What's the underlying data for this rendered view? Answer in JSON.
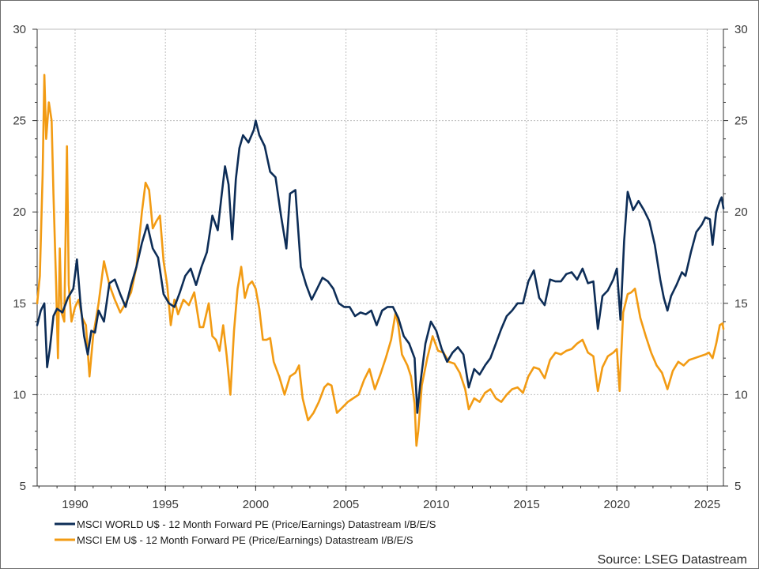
{
  "colors": {
    "world": "#0d2d57",
    "em": "#f29b13",
    "grid": "#bdbdbd",
    "axis": "#333333"
  },
  "source": "Source: LSEG Datastream",
  "chart_data": {
    "type": "line",
    "title": "",
    "xlabel": "",
    "ylabel": "",
    "x_range": [
      1987.9,
      2025.9
    ],
    "ylim": [
      5,
      30
    ],
    "yticks": [
      "5",
      "10",
      "15",
      "20",
      "25",
      "30"
    ],
    "xticks": [
      "1990",
      "1995",
      "2000",
      "2005",
      "2010",
      "2015",
      "2020",
      "2025"
    ],
    "dual_y_axis": true,
    "grid": true,
    "legend_position": "bottom-left",
    "series": [
      {
        "name": "MSCI WORLD U$ - 12 Month Forward PE (Price/Earnings) Datastream I/B/E/S",
        "color": "#0d2d57",
        "points": [
          [
            1987.9,
            13.8
          ],
          [
            1988.1,
            14.6
          ],
          [
            1988.3,
            15.0
          ],
          [
            1988.45,
            11.5
          ],
          [
            1988.6,
            12.5
          ],
          [
            1988.8,
            14.3
          ],
          [
            1989.0,
            14.7
          ],
          [
            1989.3,
            14.5
          ],
          [
            1989.6,
            15.3
          ],
          [
            1989.9,
            15.8
          ],
          [
            1990.1,
            17.4
          ],
          [
            1990.3,
            15.0
          ],
          [
            1990.5,
            13.2
          ],
          [
            1990.7,
            12.2
          ],
          [
            1990.9,
            13.5
          ],
          [
            1991.1,
            13.4
          ],
          [
            1991.3,
            14.6
          ],
          [
            1991.6,
            14.0
          ],
          [
            1991.9,
            16.1
          ],
          [
            1992.2,
            16.3
          ],
          [
            1992.5,
            15.5
          ],
          [
            1992.8,
            14.8
          ],
          [
            1993.1,
            16.0
          ],
          [
            1993.4,
            17.0
          ],
          [
            1993.7,
            18.3
          ],
          [
            1994.0,
            19.3
          ],
          [
            1994.3,
            18.0
          ],
          [
            1994.6,
            17.5
          ],
          [
            1994.9,
            15.5
          ],
          [
            1995.2,
            15.0
          ],
          [
            1995.5,
            14.8
          ],
          [
            1995.8,
            15.6
          ],
          [
            1996.1,
            16.5
          ],
          [
            1996.4,
            16.9
          ],
          [
            1996.7,
            16.0
          ],
          [
            1997.0,
            17.0
          ],
          [
            1997.3,
            17.8
          ],
          [
            1997.6,
            19.8
          ],
          [
            1997.9,
            19.0
          ],
          [
            1998.1,
            20.8
          ],
          [
            1998.3,
            22.5
          ],
          [
            1998.5,
            21.5
          ],
          [
            1998.7,
            18.5
          ],
          [
            1998.9,
            21.8
          ],
          [
            1999.1,
            23.5
          ],
          [
            1999.3,
            24.2
          ],
          [
            1999.6,
            23.8
          ],
          [
            1999.9,
            24.5
          ],
          [
            2000.0,
            25.0
          ],
          [
            2000.2,
            24.2
          ],
          [
            2000.5,
            23.6
          ],
          [
            2000.8,
            22.2
          ],
          [
            2001.1,
            21.9
          ],
          [
            2001.4,
            19.8
          ],
          [
            2001.7,
            18.0
          ],
          [
            2001.9,
            21.0
          ],
          [
            2002.2,
            21.2
          ],
          [
            2002.5,
            17.0
          ],
          [
            2002.8,
            16.0
          ],
          [
            2003.1,
            15.2
          ],
          [
            2003.4,
            15.8
          ],
          [
            2003.7,
            16.4
          ],
          [
            2004.0,
            16.2
          ],
          [
            2004.3,
            15.8
          ],
          [
            2004.6,
            15.0
          ],
          [
            2004.9,
            14.8
          ],
          [
            2005.2,
            14.8
          ],
          [
            2005.5,
            14.3
          ],
          [
            2005.8,
            14.5
          ],
          [
            2006.1,
            14.4
          ],
          [
            2006.4,
            14.6
          ],
          [
            2006.7,
            13.8
          ],
          [
            2007.0,
            14.6
          ],
          [
            2007.3,
            14.8
          ],
          [
            2007.6,
            14.8
          ],
          [
            2007.9,
            14.2
          ],
          [
            2008.2,
            13.2
          ],
          [
            2008.5,
            12.8
          ],
          [
            2008.8,
            12.0
          ],
          [
            2008.95,
            9.0
          ],
          [
            2009.1,
            10.5
          ],
          [
            2009.4,
            12.8
          ],
          [
            2009.7,
            14.0
          ],
          [
            2010.0,
            13.5
          ],
          [
            2010.3,
            12.5
          ],
          [
            2010.6,
            11.8
          ],
          [
            2010.9,
            12.3
          ],
          [
            2011.2,
            12.6
          ],
          [
            2011.5,
            12.2
          ],
          [
            2011.8,
            10.4
          ],
          [
            2012.1,
            11.4
          ],
          [
            2012.4,
            11.1
          ],
          [
            2012.7,
            11.6
          ],
          [
            2013.0,
            12.0
          ],
          [
            2013.3,
            12.8
          ],
          [
            2013.6,
            13.6
          ],
          [
            2013.9,
            14.3
          ],
          [
            2014.2,
            14.6
          ],
          [
            2014.5,
            15.0
          ],
          [
            2014.8,
            15.0
          ],
          [
            2015.1,
            16.2
          ],
          [
            2015.4,
            16.8
          ],
          [
            2015.7,
            15.3
          ],
          [
            2016.0,
            14.9
          ],
          [
            2016.3,
            16.3
          ],
          [
            2016.6,
            16.2
          ],
          [
            2016.9,
            16.2
          ],
          [
            2017.2,
            16.6
          ],
          [
            2017.5,
            16.7
          ],
          [
            2017.8,
            16.3
          ],
          [
            2018.1,
            16.9
          ],
          [
            2018.4,
            16.1
          ],
          [
            2018.7,
            16.2
          ],
          [
            2018.95,
            13.6
          ],
          [
            2019.2,
            15.4
          ],
          [
            2019.5,
            15.7
          ],
          [
            2019.8,
            16.3
          ],
          [
            2020.0,
            16.9
          ],
          [
            2020.2,
            14.1
          ],
          [
            2020.4,
            18.4
          ],
          [
            2020.6,
            21.1
          ],
          [
            2020.9,
            20.1
          ],
          [
            2021.2,
            20.6
          ],
          [
            2021.5,
            20.1
          ],
          [
            2021.8,
            19.5
          ],
          [
            2022.1,
            18.2
          ],
          [
            2022.4,
            16.3
          ],
          [
            2022.6,
            15.3
          ],
          [
            2022.8,
            14.6
          ],
          [
            2023.0,
            15.4
          ],
          [
            2023.3,
            16.0
          ],
          [
            2023.6,
            16.7
          ],
          [
            2023.8,
            16.5
          ],
          [
            2024.1,
            17.8
          ],
          [
            2024.4,
            18.9
          ],
          [
            2024.7,
            19.3
          ],
          [
            2024.9,
            19.7
          ],
          [
            2025.15,
            19.6
          ],
          [
            2025.3,
            18.2
          ],
          [
            2025.5,
            20.0
          ],
          [
            2025.7,
            20.6
          ],
          [
            2025.8,
            20.8
          ],
          [
            2025.9,
            20.2
          ]
        ]
      },
      {
        "name": "MSCI EM U$ - 12 Month Forward PE (Price/Earnings) Datastream I/B/E/S",
        "color": "#f29b13",
        "points": [
          [
            1987.9,
            15.0
          ],
          [
            1988.05,
            16.5
          ],
          [
            1988.2,
            22.0
          ],
          [
            1988.3,
            27.5
          ],
          [
            1988.4,
            24.0
          ],
          [
            1988.55,
            26.0
          ],
          [
            1988.7,
            25.0
          ],
          [
            1988.8,
            21.0
          ],
          [
            1988.95,
            16.0
          ],
          [
            1989.05,
            12.0
          ],
          [
            1989.15,
            18.0
          ],
          [
            1989.25,
            14.5
          ],
          [
            1989.4,
            14.0
          ],
          [
            1989.55,
            23.6
          ],
          [
            1989.65,
            16.0
          ],
          [
            1989.8,
            14.0
          ],
          [
            1990.0,
            14.8
          ],
          [
            1990.2,
            15.2
          ],
          [
            1990.4,
            14.2
          ],
          [
            1990.6,
            13.8
          ],
          [
            1990.8,
            11.0
          ],
          [
            1991.0,
            13.2
          ],
          [
            1991.3,
            15.0
          ],
          [
            1991.6,
            17.3
          ],
          [
            1991.9,
            16.0
          ],
          [
            1992.2,
            15.2
          ],
          [
            1992.5,
            14.5
          ],
          [
            1992.8,
            15.0
          ],
          [
            1993.1,
            15.6
          ],
          [
            1993.4,
            17.0
          ],
          [
            1993.7,
            20.0
          ],
          [
            1993.9,
            21.6
          ],
          [
            1994.1,
            21.2
          ],
          [
            1994.3,
            19.1
          ],
          [
            1994.5,
            19.5
          ],
          [
            1994.7,
            19.8
          ],
          [
            1994.9,
            17.3
          ],
          [
            1995.1,
            16.0
          ],
          [
            1995.3,
            13.8
          ],
          [
            1995.5,
            15.2
          ],
          [
            1995.7,
            14.4
          ],
          [
            1996.0,
            15.2
          ],
          [
            1996.3,
            14.9
          ],
          [
            1996.6,
            15.6
          ],
          [
            1996.9,
            13.7
          ],
          [
            1997.1,
            13.7
          ],
          [
            1997.4,
            15.0
          ],
          [
            1997.6,
            13.2
          ],
          [
            1997.8,
            13.0
          ],
          [
            1998.0,
            12.4
          ],
          [
            1998.2,
            13.8
          ],
          [
            1998.4,
            12.1
          ],
          [
            1998.6,
            10.0
          ],
          [
            1998.8,
            13.5
          ],
          [
            1999.0,
            15.8
          ],
          [
            1999.2,
            17.0
          ],
          [
            1999.4,
            15.3
          ],
          [
            1999.6,
            16.0
          ],
          [
            1999.8,
            16.2
          ],
          [
            2000.0,
            15.8
          ],
          [
            2000.2,
            14.7
          ],
          [
            2000.4,
            13.0
          ],
          [
            2000.6,
            13.0
          ],
          [
            2000.8,
            13.1
          ],
          [
            2001.0,
            11.8
          ],
          [
            2001.3,
            11.0
          ],
          [
            2001.6,
            10.0
          ],
          [
            2001.9,
            11.0
          ],
          [
            2002.2,
            11.2
          ],
          [
            2002.4,
            11.6
          ],
          [
            2002.6,
            9.8
          ],
          [
            2002.9,
            8.6
          ],
          [
            2003.2,
            9.0
          ],
          [
            2003.5,
            9.6
          ],
          [
            2003.8,
            10.4
          ],
          [
            2004.0,
            10.6
          ],
          [
            2004.2,
            10.5
          ],
          [
            2004.5,
            9.0
          ],
          [
            2004.8,
            9.3
          ],
          [
            2005.1,
            9.6
          ],
          [
            2005.4,
            9.8
          ],
          [
            2005.7,
            10.0
          ],
          [
            2006.0,
            10.8
          ],
          [
            2006.3,
            11.4
          ],
          [
            2006.6,
            10.3
          ],
          [
            2006.9,
            11.1
          ],
          [
            2007.2,
            12.0
          ],
          [
            2007.5,
            13.0
          ],
          [
            2007.75,
            14.5
          ],
          [
            2007.9,
            13.8
          ],
          [
            2008.1,
            12.2
          ],
          [
            2008.4,
            11.6
          ],
          [
            2008.6,
            11.0
          ],
          [
            2008.8,
            9.5
          ],
          [
            2008.9,
            7.2
          ],
          [
            2009.0,
            8.0
          ],
          [
            2009.2,
            10.5
          ],
          [
            2009.5,
            12.0
          ],
          [
            2009.8,
            13.2
          ],
          [
            2010.1,
            12.4
          ],
          [
            2010.4,
            12.3
          ],
          [
            2010.7,
            11.8
          ],
          [
            2011.0,
            11.7
          ],
          [
            2011.3,
            11.2
          ],
          [
            2011.6,
            10.3
          ],
          [
            2011.8,
            9.2
          ],
          [
            2012.1,
            9.8
          ],
          [
            2012.4,
            9.6
          ],
          [
            2012.7,
            10.1
          ],
          [
            2013.0,
            10.3
          ],
          [
            2013.3,
            9.8
          ],
          [
            2013.6,
            9.6
          ],
          [
            2013.9,
            10.0
          ],
          [
            2014.2,
            10.3
          ],
          [
            2014.5,
            10.4
          ],
          [
            2014.8,
            10.1
          ],
          [
            2015.1,
            11.0
          ],
          [
            2015.4,
            11.5
          ],
          [
            2015.7,
            11.4
          ],
          [
            2016.0,
            10.9
          ],
          [
            2016.3,
            11.9
          ],
          [
            2016.6,
            12.3
          ],
          [
            2016.9,
            12.2
          ],
          [
            2017.2,
            12.4
          ],
          [
            2017.5,
            12.5
          ],
          [
            2017.8,
            12.8
          ],
          [
            2018.1,
            13.0
          ],
          [
            2018.4,
            12.3
          ],
          [
            2018.7,
            12.1
          ],
          [
            2018.95,
            10.2
          ],
          [
            2019.2,
            11.5
          ],
          [
            2019.5,
            12.1
          ],
          [
            2019.8,
            12.3
          ],
          [
            2020.0,
            12.5
          ],
          [
            2020.15,
            10.2
          ],
          [
            2020.35,
            14.5
          ],
          [
            2020.6,
            15.5
          ],
          [
            2020.8,
            15.6
          ],
          [
            2021.0,
            15.8
          ],
          [
            2021.3,
            14.2
          ],
          [
            2021.6,
            13.2
          ],
          [
            2021.9,
            12.3
          ],
          [
            2022.2,
            11.6
          ],
          [
            2022.5,
            11.2
          ],
          [
            2022.8,
            10.3
          ],
          [
            2023.1,
            11.3
          ],
          [
            2023.4,
            11.8
          ],
          [
            2023.7,
            11.6
          ],
          [
            2024.0,
            11.9
          ],
          [
            2024.3,
            12.0
          ],
          [
            2024.6,
            12.1
          ],
          [
            2024.9,
            12.2
          ],
          [
            2025.1,
            12.3
          ],
          [
            2025.3,
            12.0
          ],
          [
            2025.5,
            12.8
          ],
          [
            2025.7,
            13.8
          ],
          [
            2025.85,
            13.9
          ],
          [
            2025.9,
            13.6
          ]
        ]
      }
    ]
  }
}
